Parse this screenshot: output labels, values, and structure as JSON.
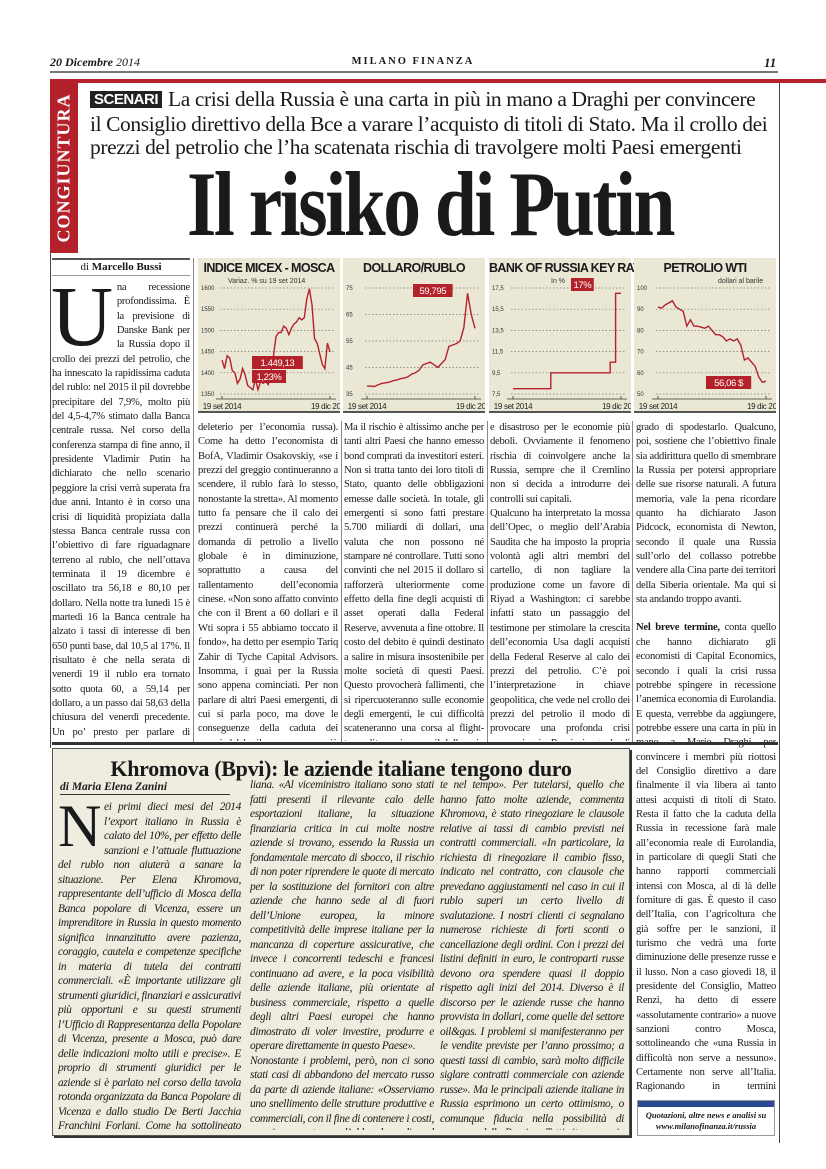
{
  "header": {
    "date_day": "20 Dicembre",
    "date_year": "2014",
    "publication": "MILANO FINANZA",
    "page_number": "11"
  },
  "section": "CONGIUNTURA",
  "article": {
    "kicker": "SCENARI",
    "deck": "La crisi della Russia è una carta in più in mano a Draghi per convincere il Consiglio direttivo della Bce a varare l’acquisto di titoli di Stato. Ma il crollo dei prezzi del petrolio che l’ha scatenata rischia di travolgere molti Paesi emergenti",
    "headline": "Il risiko di Putin",
    "byline_prefix": "di",
    "byline_author": "Marcello Bussi",
    "dropcap": "U",
    "col1": "na recessione profondissima. È la previsione di Danske Bank per la Russia dopo il crollo dei prezzi del petrolio, che ha innescato la rapidissima caduta del rublo: nel 2015 il pil dovrebbe precipitare del 7,9%, molto più del 4,5-4,7% stimato dalla Banca centrale russa. Nel corso della conferenza stampa di fine anno, il presidente Vladimir Putin ha dichiarato che nello scenario peggiore la crisi verrà superata fra due anni. Intanto è in corso una crisi di liquidità propiziata dalla stessa Banca centrale russa con l’obiettivo di fare riguadagnare terreno al rublo, che nell’ottava terminata il 19 dicembre è oscillato tra 56,18 e 80,10 per dollaro. Nella notte tra lunedì 15 è martedì 16 la Banca centrale ha alzato i tassi di interesse di ben 650 punti base, dal 10,5 al 17%. Il risultato è che nella serata di venerdì 19 il rublo era tornato sotto quota 60, a 59,14 per dollaro, a un passo dai 58,63 della chiusura del venerdì precedente. Un po’ presto per parlare di missione compiuta. Anche perché il recupero del rublo ha coinciso con un non trascurabile rialzo dei prezzi del petrolio (il Brent è comunque appena al di sopra dei 60 dollari al barile, un livello",
    "col2": "deleterio per l’economia russa). Come ha detto l’economista di BofA, Vladimir Osakovskiy, «se i prezzi del greggio continueranno a scendere, il rublo farà lo stesso, nonostante la stretta». Al momento tutto fa pensare che il calo dei prezzi continuerà perché la domanda di petrolio a livello globale è in diminuzione, soprattutto a causa del rallentamento dell’economia cinese. «Non sono affatto convinto che con il Brent a 60 dollari e il Wti sopra i 55 abbiamo toccato il fondo», ha detto per esempio Tariq Zahir di Tyche Capital Advisors. Insomma, i guai per la Russia sono appena cominciati. Per non parlare di altri Paesi emergenti, di cui si parla poco, ma dove le conseguenze della caduta dei prezzi del barile sono ancora più devastanti: è il caso dell’Iran, del Venezuela e della Nigeria, che pure fanno parte dell’Opec.",
    "col3": "Ma il rischio è altissimo anche per tanti altri Paesi che hanno emesso bond comprati da investitori esteri. Non si tratta tanto dei loro titoli di Stato, quanto delle obbligazioni emesse dalle società. In totale, gli emergenti si sono fatti prestare 5.700 miliardi di dollari, una valuta che non possono né stampare né controllare. Tutti sono convinti che nel 2015 il dollaro si rafforzerà ulteriormente come effetto della fine degli acquisti di asset operati dalla Federal Reserve, avvenuta a fine ottobre. Il costo del debito è quindi destinato a salire in misura insostenibile per molte società di questi Paesi. Questo provocherà fallimenti, che si ripercuoteranno sulle economie degli emergenti, le cui difficoltà scateneranno una corsa al flight-to-quality, ossia verso il dollaro, in un circolo virtuoso per gli Stati Uniti",
    "col4_p1": "e disastroso per le economie più deboli. Ovviamente il fenomeno rischia di coinvolgere anche la Russia, sempre che il Cremlino non si decida a introdurre dei controlli sui capitali.",
    "col4_p2": "Qualcuno ha interpretato la mossa dell’Opec, o meglio dell’Arabia Saudita che ha imposto la propria volontà agli altri membri del cartello, di non tagliare la produzione come un favore di Riyad a Washington: ci sarebbe infatti stato un passaggio del testimone per stimolare la crescita dell’economia Usa dagli acquisti della Federal Reserve al calo dei prezzi del petrolio. C’è poi l’interpretazione in chiave geopolitica, che vede nel crollo dei prezzi del petrolio il modo di provocare una profonda crisi economica in Russia in grado di scatenare una rivolta (più di palazzo che di piazza) contro Putin in",
    "col5_p1": "grado di spodestarlo. Qualcuno, poi, sostiene che l’obiettivo finale sia addirittura quello di smembrare la Russia per potersi appropriare delle sue risorse naturali. A futura memoria, vale la pena ricordare quanto ha dichiarato Jason Pidcock, economista di Newton, secondo il quale una Russia sull’orlo del collasso potrebbe vendere alla Cina parte dei territori della Siberia orientale. Ma qui si sta andando troppo avanti.",
    "col5_lead": "Nel breve termine,",
    "col5_p2": " conta quello che hanno dichiarato gli economisti di Capital Economics, secondo i quali la crisi russa potrebbe spingere in recessione l’anemica economia di Eurolandia. E questa, verrebbe da aggiungere, potrebbe essere una carta in più in mano a Mario Draghi per convincere i membri più riottosi del Consiglio direttivo a dare finalmente il via libera ai tanto attesi acquisti di titoli di Stato. Resta il fatto che la caduta della Russia in recessione farà male all’economia reale di Eurolandia, in particolare di quegli Stati che hanno rapporti commerciali intensi con Mosca, al di là delle forniture di gas. È questo il caso dell’Italia, con l’agricoltura che già soffre per le sanzioni, il turismo che vedrà una forte diminuzione delle presenze russe e il lusso. Non a caso giovedì 18, il presidente del Consiglio, Matteo Renzi, ha detto di essere «assolutamente contrario» a nuove sanzioni contro Mosca, sottolineando che «una Russia in difficoltà non serve a nessuno». Certamente non serve all’Italia. Ragionando in termini strettamente economici Renzi ha ragione. Ma la partita che si sta giocando è tutta politica e passa sopra la testa del presidente del Consiglio. (riproduzione riservata)",
    "link_box": {
      "line1": "Quotazioni, altre news e analisi su",
      "line2": "www.milanofinanza.it/russia"
    }
  },
  "sidebar_article": {
    "title": "Khromova (Bpvi): le aziende italiane tengono duro",
    "byline": "di Maria Elena Zanini",
    "dropcap": "N",
    "col1": "ei primi dieci mesi del 2014 l’export italiano in Russia è calato del 10%, per effetto delle sanzioni e l’attuale fluttuazione del rublo non aiuterà a sanare la situazione. Per Elena Khromova, rappresentante dell’ufficio di Mosca della Banca popolare di Vicenza, essere un imprenditore in Russia in questo momento significa innanzitutto avere pazienza, coraggio, cautela e competenze specifiche in materia di tutela dei contratti commerciali. «È importante utilizzare gli strumenti giuridici, finanziari e assicurativi più opportuni e su questi strumenti l’Ufficio di Rappresentanza della Popolare di Vicenza, presente a Mosca, può dare delle indicazioni molto utili e precise». E proprio di strumenti giuridici per le aziende si è parlato nel corso della tavola rotonda organizzata da Banca Popolare di Vicenza e dallo studio De Berti Jacchia Franchini Forlani. Come ha sottolineato Khromova per affrontare i rischi principali lo scorso 17 dicembre è stato organizzato a Mosca un incontro tra il viceministro degli Esteri, Lapo Pistelli, e le maggiori aziende italiane in Russia presso l’Ambasciata ita-",
    "col2_p1": "liana. «Al viceministro italiano sono stati fatti presenti il rilevante calo delle esportazioni italiane, la situazione finanziaria critica in cui molte nostre aziende si trovano, essendo la Russia un fondamentale mercato di sbocco, il rischio di non poter riprendere le quote di mercato per la sostituzione dei fornitori con altre aziende che hanno sede al di fuori dell’Unione europea, la minore competitività delle imprese italiane per la mancanza di coperture assicurative, che invece i concorrenti tedeschi e francesi continuano ad avere, e la poca visibilità delle aziende italiane, più orientate al business commerciale, rispetto a quelle degli altri Paesi europei che hanno dimostrato di voler investire, produrre e operare direttamente in questo Paese».",
    "col2_p2": "Nonostante i problemi, però, non ci sono stati casi di abbandono del mercato russo da parte di aziende italiane: «Osserviamo uno snellimento delle strutture produttive e commerciali, con il fine di contenere i costi, ma sicuramente non l’abbandono di quel mercato. Malgrado il trend economico negativo, le aziende italiane sanno che cessando l’attività in Russia, non potrebbero più ritrovare le stesse opportunità, faticosamente coltiva-",
    "col3": "te nel tempo». Per tutelarsi, quello che hanno fatto molte aziende, commenta Khromova, è stato rinegoziare le clausole relative ai tassi di cambio previsti nei contratti commerciali. «In particolare, la richiesta di rinegoziare il cambio fisso, indicato nel contratto, con clausole che prevedano aggiustamenti nel caso in cui il rublo superi un certo livello di svalutazione. I nostri clienti ci segnalano numerose richieste di forti sconti o cancellazione degli ordini. Con i prezzi dei listini definiti in euro, le controparti russe devono ora spendere quasi il doppio rispetto agli inizi del 2014. Diverso è il discorso per le aziende russe che hanno provvista in dollari, come quelle del settore oil&gas. I problemi si manifesteranno per le vendite previste per l’anno prossimo; a questi tassi di cambio, sarà molto difficile siglare contratti commerciale con aziende russe». Ma le principali aziende italiane in Russia esprimono un certo ottimismo, o comunque fiducia nella possibilità di recupero della Russia: «Tutti ritengono sia arrivato il momento di rivedere le strategie commerciali e d’investimento in quel Paese, passando sempre più dal made in Italy al made with Italy». (riproduzione riservata)"
  },
  "colors": {
    "accent_red": "#b3222b",
    "chart_bg": "#ebe7d5",
    "box_bg": "#efeddf",
    "link_bar": "#2a4a8f"
  },
  "chart_data": [
    {
      "type": "line",
      "title": "INDICE MICEX - MOSCA",
      "subtitle": "Variaz. % su 19 set 2014",
      "x_labels": [
        "19 set 2014",
        "19 dic 2014"
      ],
      "ylim": [
        1350,
        1600
      ],
      "yticks": [
        "1350",
        "1400",
        "1450",
        "1500",
        "1550",
        "1600"
      ],
      "grid": true,
      "values": [
        1430,
        1410,
        1440,
        1435,
        1405,
        1400,
        1375,
        1385,
        1410,
        1395,
        1370,
        1365,
        1360,
        1385,
        1360,
        1380,
        1375,
        1380,
        1372,
        1400,
        1440,
        1485,
        1495,
        1495,
        1510,
        1505,
        1490,
        1505,
        1515,
        1520,
        1530,
        1525,
        1530,
        1575,
        1598,
        1560,
        1480,
        1470,
        1445,
        1420,
        1410,
        1470,
        1449.13
      ],
      "annotations": [
        "1.449,13",
        "1,23%"
      ]
    },
    {
      "type": "line",
      "title": "DOLLARO/RUBLO",
      "x_labels": [
        "19 set 2014",
        "19 dic 2014"
      ],
      "ylim": [
        35,
        75
      ],
      "yticks": [
        "35",
        "45",
        "55",
        "65",
        "75"
      ],
      "grid": true,
      "values": [
        38,
        38,
        37.8,
        38.5,
        39,
        39.2,
        39.5,
        40,
        40.3,
        40.8,
        41,
        41.5,
        42.5,
        43,
        44,
        46,
        46.5,
        47,
        46,
        45,
        46.5,
        48,
        53,
        53.5,
        54,
        55,
        60,
        73,
        65,
        59.795
      ],
      "annotations": [
        "59,795"
      ]
    },
    {
      "type": "line",
      "title": "BANK OF RUSSIA KEY RATE",
      "subtitle": "In %",
      "x_labels": [
        "19 set 2014",
        "19 dic 2014"
      ],
      "ylim": [
        7.5,
        17.5
      ],
      "yticks": [
        "7,5",
        "9,5",
        "11,5",
        "13,5",
        "15,5",
        "17,5"
      ],
      "grid": true,
      "step": true,
      "values": [
        8,
        8,
        8,
        8,
        8,
        8,
        8,
        9.5,
        9.5,
        9.5,
        9.5,
        9.5,
        9.5,
        9.5,
        9.5,
        9.5,
        9.5,
        9.5,
        10.5,
        17,
        17
      ],
      "annotations": [
        "17%"
      ]
    },
    {
      "type": "line",
      "title": "PETROLIO WTI",
      "subtitle": "dollari al barile",
      "x_labels": [
        "19 set 2014",
        "19 dic 2014"
      ],
      "ylim": [
        50,
        100
      ],
      "yticks": [
        "50",
        "60",
        "70",
        "80",
        "90",
        "100"
      ],
      "grid": true,
      "values": [
        91,
        90.5,
        92,
        93,
        94,
        91,
        90,
        89,
        82,
        85,
        82,
        82,
        81.5,
        81,
        82,
        80,
        78,
        78,
        77,
        75,
        76,
        75,
        76,
        73,
        66,
        67,
        65,
        63,
        58,
        55.5,
        56.06
      ],
      "annotations": [
        "56,06 $"
      ]
    }
  ]
}
